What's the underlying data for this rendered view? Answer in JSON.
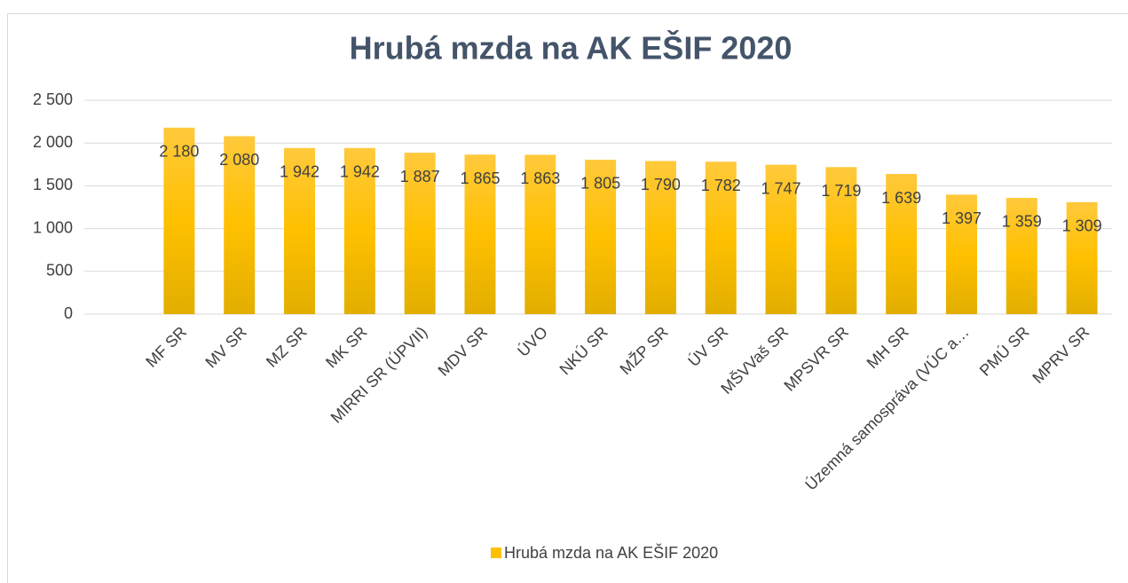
{
  "chart_data": {
    "type": "bar",
    "title": "Hrubá mzda na AK EŠIF 2020",
    "categories": [
      "MF SR",
      "MV SR",
      "MZ SR",
      "MK SR",
      "MIRRI SR (ÚPVII)",
      "MDV SR",
      "ÚVO",
      "NKÚ SR",
      "MŽP SR",
      "ÚV SR",
      "MŠVVaš SR",
      "MPSVR SR",
      "MH SR",
      "Územná samospráva (VÚC a…",
      "PMÚ SR",
      "MPRV SR"
    ],
    "series": [
      {
        "name": "Hrubá mzda na AK EŠIF 2020",
        "color": "#ffc000",
        "values": [
          2180,
          2080,
          1942,
          1942,
          1887,
          1865,
          1863,
          1805,
          1790,
          1782,
          1747,
          1719,
          1639,
          1397,
          1359,
          1309
        ],
        "value_labels": [
          "2 180",
          "2 080",
          "1 942",
          "1 942",
          "1 887",
          "1 865",
          "1 863",
          "1 805",
          "1 790",
          "1 782",
          "1 747",
          "1 719",
          "1 639",
          "1 397",
          "1 359",
          "1 309"
        ]
      }
    ],
    "ylim": [
      0,
      2500
    ],
    "yticks": [
      0,
      500,
      {
        "value": 1000,
        "label": "1 000"
      },
      {
        "value": 1500,
        "label": "1 500"
      },
      {
        "value": 2000,
        "label": "2 000"
      },
      {
        "value": 2500,
        "label": "2 500"
      }
    ],
    "grid": true,
    "legend": "bottom"
  }
}
